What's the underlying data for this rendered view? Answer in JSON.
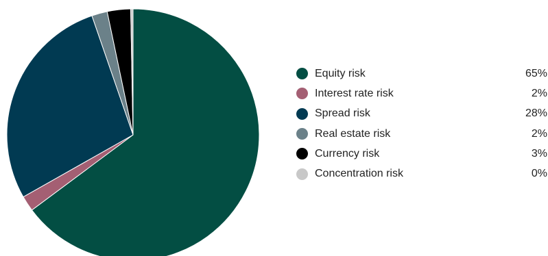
{
  "chart_data": {
    "type": "pie",
    "title": "",
    "slices": [
      {
        "label": "Equity risk",
        "value": 65,
        "display": "65%",
        "color": "#034e43"
      },
      {
        "label": "Interest rate risk",
        "value": 2,
        "display": "2%",
        "color": "#a45f73"
      },
      {
        "label": "Spread risk",
        "value": 28,
        "display": "28%",
        "color": "#013a52"
      },
      {
        "label": "Real estate risk",
        "value": 2,
        "display": "2%",
        "color": "#6b8189"
      },
      {
        "label": "Currency risk",
        "value": 3,
        "display": "3%",
        "color": "#000000"
      },
      {
        "label": "Concentration risk",
        "value": 0.3,
        "display": "0%",
        "color": "#c8c8c8"
      }
    ],
    "start_angle_deg": 0,
    "direction": "clockwise",
    "legend_position": "right"
  }
}
